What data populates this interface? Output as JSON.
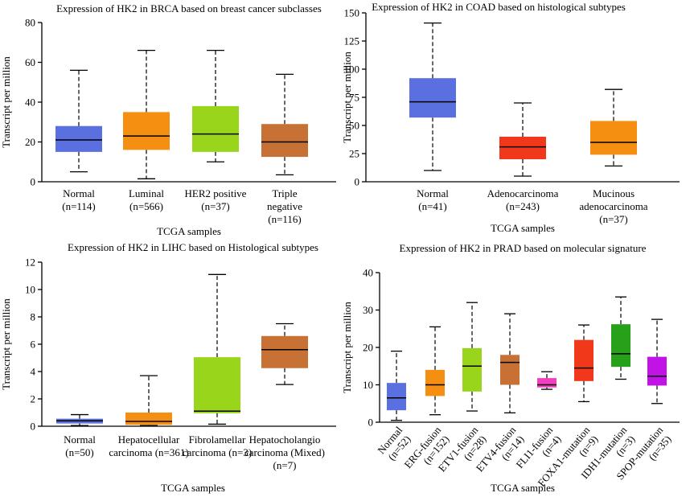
{
  "chart_data": [
    {
      "type": "boxplot",
      "title": "Expression of HK2 in BRCA based on breast cancer subclasses",
      "xlabel": "TCGA samples",
      "ylabel": "Transcript per million",
      "ylim": [
        0,
        80
      ],
      "yticks": [
        "0",
        "20",
        "40",
        "60",
        "80"
      ],
      "groups": [
        {
          "label": [
            "Normal",
            "(n=114)"
          ],
          "color": "#5a6fe0",
          "whisker_low": 5,
          "q1": 15,
          "median": 21,
          "q3": 28,
          "whisker_high": 56
        },
        {
          "label": [
            "Luminal",
            "(n=566)"
          ],
          "color": "#f58f12",
          "whisker_low": 1.5,
          "q1": 16,
          "median": 23,
          "q3": 35,
          "whisker_high": 66
        },
        {
          "label": [
            "HER2 positive",
            "(n=37)"
          ],
          "color": "#99d51b",
          "whisker_low": 10,
          "q1": 15,
          "median": 24,
          "q3": 38,
          "whisker_high": 66
        },
        {
          "label": [
            "Triple",
            "negative",
            "(n=116)"
          ],
          "color": "#c87134",
          "whisker_low": 3.5,
          "q1": 12.5,
          "median": 20,
          "q3": 29,
          "whisker_high": 54
        }
      ]
    },
    {
      "type": "boxplot",
      "title": "Expression of HK2 in COAD based on histological subtypes",
      "xlabel": "TCGA samples",
      "ylabel": "Transcript per million",
      "ylim": [
        0,
        150
      ],
      "yticks": [
        "0",
        "25",
        "50",
        "75",
        "100",
        "125",
        "150"
      ],
      "groups": [
        {
          "label": [
            "Normal",
            "(n=41)"
          ],
          "color": "#5a6fe0",
          "whisker_low": 10,
          "q1": 57,
          "median": 71,
          "q3": 92,
          "whisker_high": 141
        },
        {
          "label": [
            "Adenocarcinoma",
            "(n=243)"
          ],
          "color": "#f2381a",
          "whisker_low": 5,
          "q1": 20,
          "median": 31,
          "q3": 40,
          "whisker_high": 70
        },
        {
          "label": [
            "Mucinous",
            "adenocarcinoma",
            "(n=37)"
          ],
          "color": "#f58f12",
          "whisker_low": 14,
          "q1": 24,
          "median": 35,
          "q3": 54,
          "whisker_high": 82
        }
      ]
    },
    {
      "type": "boxplot",
      "title": "Expression of HK2 in LIHC based on Histological subtypes",
      "xlabel": "TCGA samples",
      "ylabel": "Transcript per million",
      "ylim": [
        0,
        12
      ],
      "yticks": [
        "0",
        "2",
        "4",
        "6",
        "8",
        "10",
        "12"
      ],
      "groups": [
        {
          "label": [
            "Normal",
            "(n=50)"
          ],
          "color": "#5a6fe0",
          "whisker_low": 0.05,
          "q1": 0.2,
          "median": 0.4,
          "q3": 0.55,
          "whisker_high": 0.85
        },
        {
          "label": [
            "Hepatocellular",
            "carcinoma (n=361)"
          ],
          "color": "#f58f12",
          "whisker_low": 0.05,
          "q1": 0.1,
          "median": 0.35,
          "q3": 1.0,
          "whisker_high": 3.7
        },
        {
          "label": [
            "Fibrolamellar",
            "carcinoma (n=3)"
          ],
          "color": "#99d51b",
          "whisker_low": 0.15,
          "q1": 0.95,
          "median": 1.1,
          "q3": 5.05,
          "whisker_high": 11.1
        },
        {
          "label": [
            "Hepatocholangio",
            "carcinoma (Mixed)",
            "(n=7)"
          ],
          "color": "#c87134",
          "whisker_low": 3.05,
          "q1": 4.25,
          "median": 5.6,
          "q3": 6.6,
          "whisker_high": 7.5
        }
      ]
    },
    {
      "type": "boxplot",
      "title": "Expression of HK2 in PRAD based on molecular signature",
      "xlabel": "TCGA samples",
      "ylabel": "Transcript per million",
      "ylim": [
        0,
        40
      ],
      "yticks": [
        "0",
        "10",
        "20",
        "30",
        "40"
      ],
      "groups": [
        {
          "label": [
            "Normal",
            "(n=52)"
          ],
          "color": "#5a6fe0",
          "whisker_low": 0.5,
          "q1": 3.2,
          "median": 6.5,
          "q3": 10.5,
          "whisker_high": 19
        },
        {
          "label": [
            "ERG-fusion",
            "(n=152)"
          ],
          "color": "#f58f12",
          "whisker_low": 2,
          "q1": 7,
          "median": 10,
          "q3": 14,
          "whisker_high": 25.5
        },
        {
          "label": [
            "ETV1-fusion",
            "(n=28)"
          ],
          "color": "#99d51b",
          "whisker_low": 3,
          "q1": 8.2,
          "median": 15,
          "q3": 19.8,
          "whisker_high": 32
        },
        {
          "label": [
            "ETV4-fusion",
            "(n=14)"
          ],
          "color": "#c87134",
          "whisker_low": 2.5,
          "q1": 10,
          "median": 16,
          "q3": 18,
          "whisker_high": 29
        },
        {
          "label": [
            "FLI1-fusion",
            "(n=4)"
          ],
          "color": "#f13fc0",
          "whisker_low": 8.8,
          "q1": 9.3,
          "median": 10,
          "q3": 11.8,
          "whisker_high": 13.5
        },
        {
          "label": [
            "FOXA1-mutation",
            "(n=9)"
          ],
          "color": "#f2381a",
          "whisker_low": 5.5,
          "q1": 11,
          "median": 14.5,
          "q3": 22,
          "whisker_high": 26
        },
        {
          "label": [
            "IDH1-mutation",
            "(n=3)"
          ],
          "color": "#27a11a",
          "whisker_low": 11.5,
          "q1": 14.8,
          "median": 18.3,
          "q3": 26.2,
          "whisker_high": 33.5
        },
        {
          "label": [
            "SPOP-mutation",
            "(n=35)"
          ],
          "color": "#c113e6",
          "whisker_low": 5,
          "q1": 9.8,
          "median": 12.3,
          "q3": 17.5,
          "whisker_high": 27.5
        }
      ]
    }
  ]
}
